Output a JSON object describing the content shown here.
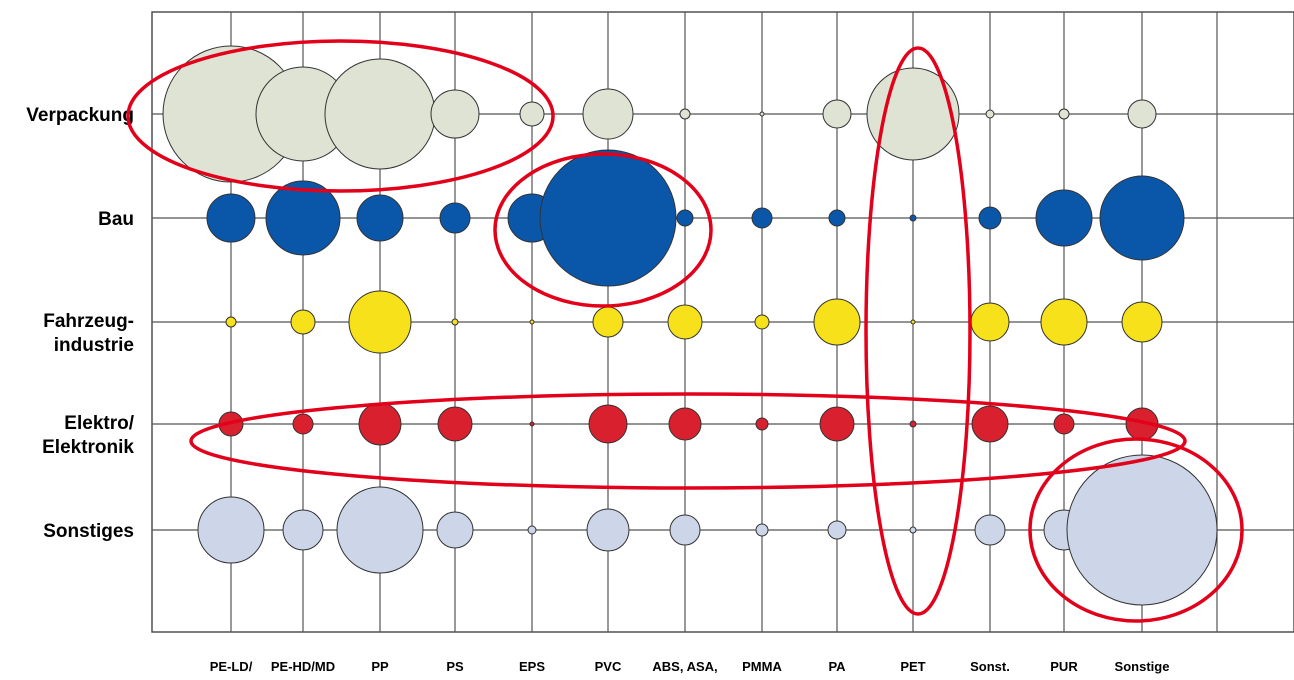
{
  "chart_data": {
    "type": "scatter",
    "categories": [
      "PE-LD/",
      "PE-HD/MD",
      "PP",
      "PS",
      "EPS",
      "PVC",
      "ABS, ASA,",
      "PMMA",
      "PA",
      "PET",
      "Sonst.",
      "PUR",
      "Sonstige"
    ],
    "rows": [
      {
        "label_lines": [
          "Verpackung"
        ],
        "color": "#dfe3d3",
        "values": [
          68,
          47,
          55,
          24,
          12,
          25,
          5,
          2,
          14,
          46,
          4,
          5,
          14
        ]
      },
      {
        "label_lines": [
          "Bau"
        ],
        "color": "#0a57aa",
        "values": [
          24,
          37,
          23,
          15,
          24,
          68,
          8,
          10,
          8,
          3,
          11,
          28,
          42
        ]
      },
      {
        "label_lines": [
          "Fahrzeug-",
          "industrie"
        ],
        "color": "#f6e11a",
        "values": [
          5,
          12,
          31,
          3,
          0,
          15,
          17,
          7,
          23,
          0,
          19,
          23,
          20
        ]
      },
      {
        "label_lines": [
          "Elektro/",
          "Elektronik"
        ],
        "color": "#d8202e",
        "values": [
          12,
          10,
          21,
          17,
          0,
          19,
          16,
          6,
          17,
          3,
          18,
          10,
          16
        ]
      },
      {
        "label_lines": [
          "Sonstiges"
        ],
        "color": "#ccd6e8",
        "values": [
          33,
          20,
          43,
          18,
          4,
          21,
          15,
          6,
          9,
          3,
          15,
          20,
          75
        ]
      }
    ],
    "highlights": [
      {
        "type": "rows",
        "rows": [
          0,
          0
        ],
        "cols": [
          0,
          2
        ],
        "color": "#e2001a"
      },
      {
        "type": "cell",
        "row": 1,
        "col": 5,
        "color": "#e2001a"
      },
      {
        "type": "column",
        "col": 9,
        "color": "#e2001a"
      },
      {
        "type": "row",
        "row": 3,
        "color": "#e2001a"
      },
      {
        "type": "cell",
        "row": 4,
        "col": 12,
        "color": "#e2001a"
      }
    ],
    "grid": true,
    "legend": "none"
  }
}
